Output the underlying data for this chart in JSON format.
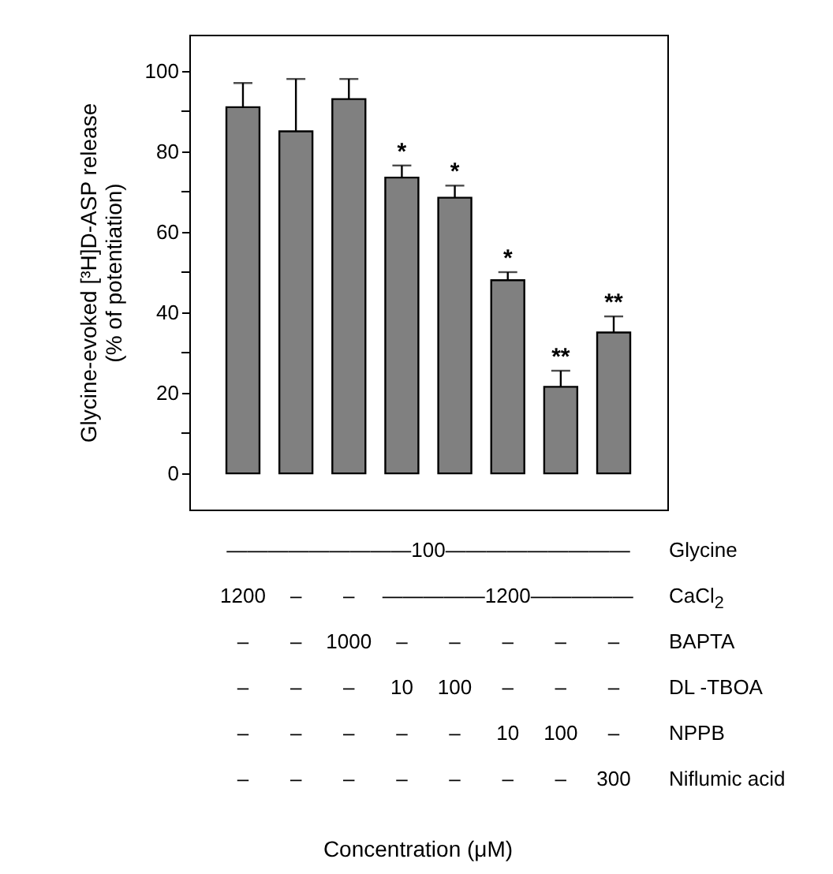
{
  "chart_data": {
    "type": "bar",
    "ylabel": "Glycine-evoked [³H]D-ASP release\n(% of potentiation)",
    "categories": [
      null,
      null,
      null,
      null,
      null,
      null,
      null,
      null
    ],
    "values": [
      91,
      85,
      93,
      73.5,
      68.5,
      48,
      21.5,
      35
    ],
    "errors": [
      6,
      13,
      5,
      3,
      3,
      2,
      4,
      4
    ],
    "value_labels": [
      null,
      null,
      null,
      "*",
      "*",
      "*",
      "**",
      "**"
    ],
    "color": "#808080",
    "ylim": [
      -9,
      109
    ],
    "yticks": [
      0,
      {
        "value": 10,
        "label": null
      },
      20,
      {
        "value": 30,
        "label": null
      },
      40,
      {
        "value": 50,
        "label": null
      },
      60,
      {
        "value": 70,
        "label": null
      },
      80,
      {
        "value": 90,
        "label": null
      },
      100
    ],
    "grid": false,
    "annotations": [
      "—————————100—————————",
      "Glycine",
      "1200 – – —————1200—————",
      "CaCl$_{2}$",
      "– – 1000 – – – – –",
      "BAPTA",
      "– – – 10 100 – – –",
      "DL -TBOA",
      "– – – – – 10 100 –",
      "NPPB",
      "– – – – – – – 300",
      "Niflumic acid",
      "Concentration (μM)"
    ]
  }
}
